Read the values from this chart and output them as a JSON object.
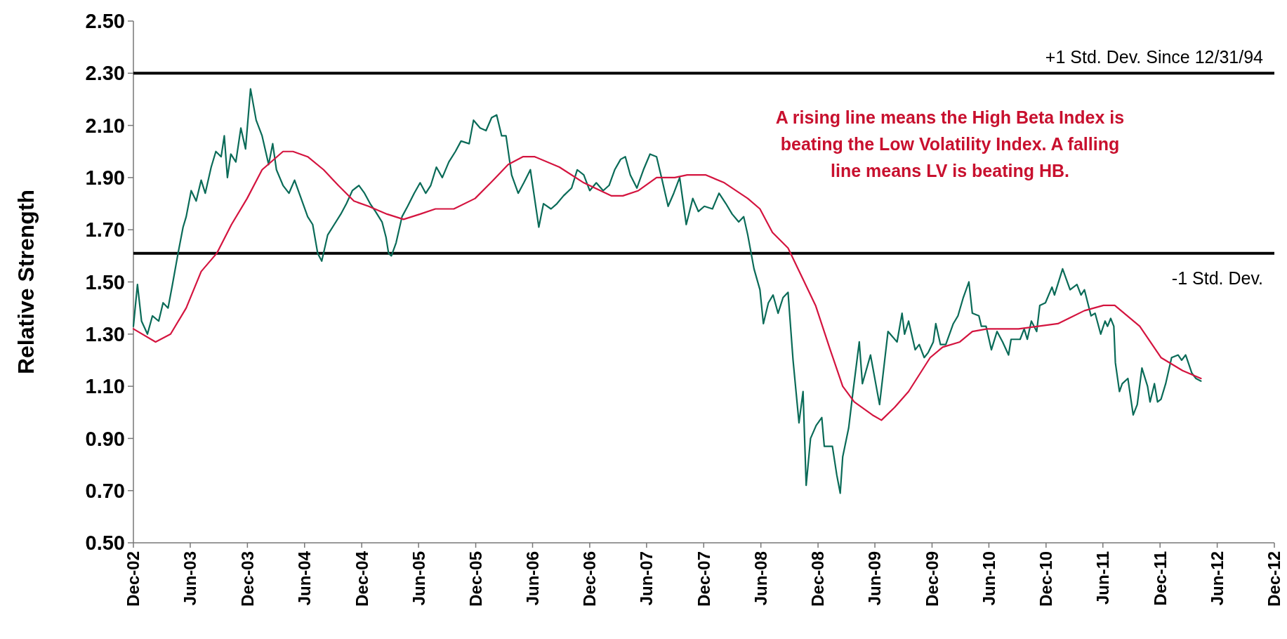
{
  "chart_data": {
    "type": "line",
    "ylabel": "Relative Strength",
    "xlim": [
      "2002-12-01",
      "2012-12-01"
    ],
    "xticks": [
      {
        "value": "2002-12-01",
        "label": "Dec-02"
      },
      {
        "value": "2003-06-01",
        "label": "Jun-03"
      },
      {
        "value": "2003-12-01",
        "label": "Dec-03"
      },
      {
        "value": "2004-06-01",
        "label": "Jun-04"
      },
      {
        "value": "2004-12-01",
        "label": "Dec-04"
      },
      {
        "value": "2005-06-01",
        "label": "Jun-05"
      },
      {
        "value": "2005-12-01",
        "label": "Dec-05"
      },
      {
        "value": "2006-06-01",
        "label": "Jun-06"
      },
      {
        "value": "2006-12-01",
        "label": "Dec-06"
      },
      {
        "value": "2007-06-01",
        "label": "Jun-07"
      },
      {
        "value": "2007-12-01",
        "label": "Dec-07"
      },
      {
        "value": "2008-06-01",
        "label": "Jun-08"
      },
      {
        "value": "2008-12-01",
        "label": "Dec-08"
      },
      {
        "value": "2009-06-01",
        "label": "Jun-09"
      },
      {
        "value": "2009-12-01",
        "label": "Dec-09"
      },
      {
        "value": "2010-06-01",
        "label": "Jun-10"
      },
      {
        "value": "2010-12-01",
        "label": "Dec-10"
      },
      {
        "value": "2011-06-01",
        "label": "Jun-11"
      },
      {
        "value": "2011-12-01",
        "label": "Dec-11"
      },
      {
        "value": "2012-06-01",
        "label": "Jun-12"
      },
      {
        "value": "2012-12-01",
        "label": "Dec-12"
      }
    ],
    "ylim": [
      0.5,
      2.5
    ],
    "yticks": [
      {
        "value": 0.5,
        "label": "0.50"
      },
      {
        "value": 0.7,
        "label": "0.70"
      },
      {
        "value": 0.9,
        "label": "0.90"
      },
      {
        "value": 1.1,
        "label": "1.10"
      },
      {
        "value": 1.3,
        "label": "1.30"
      },
      {
        "value": 1.5,
        "label": "1.50"
      },
      {
        "value": 1.7,
        "label": "1.70"
      },
      {
        "value": 1.9,
        "label": "1.90"
      },
      {
        "value": 2.1,
        "label": "2.10"
      },
      {
        "value": 2.3,
        "label": "2.30"
      },
      {
        "value": 2.5,
        "label": "2.50"
      }
    ],
    "grid": false,
    "marker": "none",
    "line_style": "solid",
    "ref_lines": [
      {
        "axis": "y",
        "value": 2.3,
        "label": "+1 Std. Dev. Since 12/31/94",
        "color": "#000000"
      },
      {
        "axis": "y",
        "value": 1.61,
        "label": "-1 Std. Dev.",
        "color": "#000000"
      }
    ],
    "annotations": [
      "A rising line means the High Beta Index is beating the Low Volatility Index. A falling line means LV is beating HB."
    ],
    "series": [
      {
        "color": "#0a6b58",
        "x": [
          "2002-12-01",
          "2002-12-14",
          "2002-12-27",
          "2003-01-15",
          "2003-01-31",
          "2003-02-20",
          "2003-03-06",
          "2003-03-22",
          "2003-04-05",
          "2003-04-23",
          "2003-05-09",
          "2003-05-19",
          "2003-06-04",
          "2003-06-20",
          "2003-07-06",
          "2003-07-19",
          "2003-08-07",
          "2003-08-22",
          "2003-09-08",
          "2003-09-18",
          "2003-09-28",
          "2003-10-09",
          "2003-10-25",
          "2003-11-10",
          "2003-11-25",
          "2003-12-11",
          "2003-12-29",
          "2004-01-17",
          "2004-02-07",
          "2004-02-20",
          "2004-03-03",
          "2004-03-24",
          "2004-04-12",
          "2004-04-30",
          "2004-05-21",
          "2004-06-11",
          "2004-06-27",
          "2004-07-13",
          "2004-07-26",
          "2004-08-14",
          "2004-09-04",
          "2004-09-25",
          "2004-10-13",
          "2004-11-01",
          "2004-11-22",
          "2004-12-10",
          "2004-12-28",
          "2005-01-14",
          "2005-02-04",
          "2005-02-17",
          "2005-02-25",
          "2005-03-06",
          "2005-03-21",
          "2005-04-09",
          "2005-04-27",
          "2005-05-18",
          "2005-06-06",
          "2005-06-24",
          "2005-07-10",
          "2005-07-28",
          "2005-08-16",
          "2005-09-06",
          "2005-09-27",
          "2005-10-15",
          "2005-11-10",
          "2005-11-24",
          "2005-12-15",
          "2006-01-03",
          "2006-01-21",
          "2006-02-06",
          "2006-02-22",
          "2006-03-08",
          "2006-03-26",
          "2006-04-16",
          "2006-05-04",
          "2006-05-25",
          "2006-06-21",
          "2006-07-06",
          "2006-07-30",
          "2006-08-18",
          "2006-09-08",
          "2006-10-04",
          "2006-10-22",
          "2006-11-12",
          "2006-12-01",
          "2006-12-22",
          "2007-01-13",
          "2007-02-01",
          "2007-02-19",
          "2007-03-10",
          "2007-03-25",
          "2007-04-10",
          "2007-05-01",
          "2007-05-22",
          "2007-06-12",
          "2007-07-03",
          "2007-07-19",
          "2007-08-09",
          "2007-08-27",
          "2007-09-15",
          "2007-10-06",
          "2007-10-27",
          "2007-11-14",
          "2007-12-03",
          "2007-12-29",
          "2008-01-19",
          "2008-02-10",
          "2008-03-01",
          "2008-03-22",
          "2008-04-07",
          "2008-04-20",
          "2008-05-10",
          "2008-05-29",
          "2008-06-09",
          "2008-06-25",
          "2008-07-10",
          "2008-07-26",
          "2008-08-11",
          "2008-08-27",
          "2008-09-12",
          "2008-10-01",
          "2008-10-14",
          "2008-10-24",
          "2008-11-07",
          "2008-11-25",
          "2008-12-13",
          "2008-12-21",
          "2009-01-16",
          "2009-01-30",
          "2009-02-10",
          "2009-02-18",
          "2009-03-09",
          "2009-03-22",
          "2009-04-12",
          "2009-04-22",
          "2009-05-18",
          "2009-06-16",
          "2009-07-13",
          "2009-08-11",
          "2009-08-27",
          "2009-09-04",
          "2009-09-17",
          "2009-10-08",
          "2009-10-21",
          "2009-11-06",
          "2009-11-19",
          "2009-12-05",
          "2009-12-13",
          "2009-12-28",
          "2010-01-14",
          "2010-02-07",
          "2010-02-22",
          "2010-03-11",
          "2010-03-29",
          "2010-04-09",
          "2010-04-30",
          "2010-05-08",
          "2010-05-23",
          "2010-06-09",
          "2010-06-27",
          "2010-07-15",
          "2010-08-03",
          "2010-08-11",
          "2010-09-09",
          "2010-09-22",
          "2010-10-02",
          "2010-10-15",
          "2010-11-01",
          "2010-11-11",
          "2010-11-29",
          "2010-12-20",
          "2010-12-28",
          "2011-01-23",
          "2011-02-16",
          "2011-03-10",
          "2011-03-23",
          "2011-04-03",
          "2011-04-24",
          "2011-05-07",
          "2011-05-25",
          "2011-06-08",
          "2011-06-16",
          "2011-06-26",
          "2011-07-06",
          "2011-07-11",
          "2011-07-24",
          "2011-08-02",
          "2011-08-20",
          "2011-09-06",
          "2011-09-19",
          "2011-10-04",
          "2011-10-22",
          "2011-10-30",
          "2011-11-13",
          "2011-11-23",
          "2011-12-04",
          "2011-12-19",
          "2012-01-07",
          "2012-01-28",
          "2012-02-08",
          "2012-02-21",
          "2012-03-12",
          "2012-03-25",
          "2012-04-10"
        ],
        "values": [
          1.33,
          1.49,
          1.35,
          1.3,
          1.37,
          1.35,
          1.42,
          1.4,
          1.49,
          1.61,
          1.71,
          1.75,
          1.85,
          1.81,
          1.89,
          1.84,
          1.94,
          2.0,
          1.98,
          2.06,
          1.9,
          1.99,
          1.96,
          2.09,
          2.01,
          2.24,
          2.12,
          2.06,
          1.95,
          2.03,
          1.93,
          1.87,
          1.84,
          1.89,
          1.82,
          1.75,
          1.72,
          1.61,
          1.58,
          1.68,
          1.72,
          1.76,
          1.8,
          1.85,
          1.87,
          1.84,
          1.8,
          1.77,
          1.73,
          1.67,
          1.61,
          1.6,
          1.65,
          1.75,
          1.79,
          1.84,
          1.88,
          1.84,
          1.87,
          1.94,
          1.9,
          1.96,
          2.0,
          2.04,
          2.03,
          2.12,
          2.09,
          2.08,
          2.13,
          2.14,
          2.06,
          2.06,
          1.91,
          1.84,
          1.88,
          1.93,
          1.71,
          1.8,
          1.78,
          1.8,
          1.83,
          1.86,
          1.93,
          1.91,
          1.85,
          1.88,
          1.85,
          1.87,
          1.93,
          1.97,
          1.98,
          1.91,
          1.86,
          1.93,
          1.99,
          1.98,
          1.9,
          1.79,
          1.84,
          1.9,
          1.72,
          1.82,
          1.77,
          1.79,
          1.78,
          1.84,
          1.8,
          1.76,
          1.73,
          1.75,
          1.68,
          1.55,
          1.47,
          1.34,
          1.42,
          1.45,
          1.38,
          1.44,
          1.46,
          1.2,
          0.96,
          1.08,
          0.72,
          0.9,
          0.95,
          0.98,
          0.87,
          0.87,
          0.76,
          0.69,
          0.83,
          0.94,
          1.07,
          1.27,
          1.11,
          1.22,
          1.03,
          1.31,
          1.27,
          1.38,
          1.3,
          1.35,
          1.24,
          1.26,
          1.21,
          1.23,
          1.27,
          1.34,
          1.26,
          1.26,
          1.34,
          1.37,
          1.44,
          1.5,
          1.38,
          1.37,
          1.33,
          1.33,
          1.24,
          1.31,
          1.27,
          1.22,
          1.28,
          1.28,
          1.32,
          1.28,
          1.35,
          1.31,
          1.41,
          1.42,
          1.48,
          1.45,
          1.55,
          1.47,
          1.49,
          1.45,
          1.47,
          1.37,
          1.38,
          1.3,
          1.35,
          1.33,
          1.36,
          1.33,
          1.19,
          1.08,
          1.11,
          1.13,
          0.99,
          1.03,
          1.17,
          1.1,
          1.04,
          1.11,
          1.04,
          1.05,
          1.11,
          1.21,
          1.22,
          1.2,
          1.22,
          1.15,
          1.13,
          1.12
        ]
      },
      {
        "color": "#d4143f",
        "x": [
          "2002-12-01",
          "2003-02-10",
          "2003-03-30",
          "2003-05-19",
          "2003-07-06",
          "2003-08-25",
          "2003-10-11",
          "2003-11-30",
          "2004-01-17",
          "2004-03-24",
          "2004-04-25",
          "2004-06-11",
          "2004-08-01",
          "2004-09-17",
          "2004-11-06",
          "2004-12-23",
          "2005-02-20",
          "2005-04-14",
          "2005-06-06",
          "2005-07-25",
          "2005-09-22",
          "2005-11-29",
          "2006-01-18",
          "2006-03-15",
          "2006-05-01",
          "2006-06-08",
          "2006-08-26",
          "2006-11-12",
          "2007-02-09",
          "2007-03-17",
          "2007-05-06",
          "2007-07-03",
          "2007-08-30",
          "2007-10-09",
          "2007-12-08",
          "2008-02-05",
          "2008-04-20",
          "2008-05-29",
          "2008-07-08",
          "2008-08-27",
          "2008-10-14",
          "2008-11-23",
          "2009-01-09",
          "2009-02-18",
          "2009-03-27",
          "2009-05-24",
          "2009-06-22",
          "2009-08-04",
          "2009-09-17",
          "2009-11-25",
          "2010-01-04",
          "2010-02-28",
          "2010-04-09",
          "2010-05-26",
          "2010-09-04",
          "2011-01-08",
          "2011-04-03",
          "2011-06-03",
          "2011-07-09",
          "2011-09-27",
          "2011-12-04",
          "2012-02-11",
          "2012-04-10"
        ],
        "values": [
          1.32,
          1.27,
          1.3,
          1.4,
          1.54,
          1.61,
          1.72,
          1.82,
          1.93,
          2.0,
          2.0,
          1.98,
          1.93,
          1.87,
          1.81,
          1.79,
          1.76,
          1.74,
          1.76,
          1.78,
          1.78,
          1.82,
          1.88,
          1.95,
          1.98,
          1.98,
          1.94,
          1.88,
          1.83,
          1.83,
          1.85,
          1.9,
          1.9,
          1.91,
          1.91,
          1.88,
          1.82,
          1.78,
          1.69,
          1.63,
          1.51,
          1.41,
          1.24,
          1.1,
          1.04,
          0.99,
          0.97,
          1.02,
          1.08,
          1.21,
          1.25,
          1.27,
          1.31,
          1.32,
          1.32,
          1.34,
          1.39,
          1.41,
          1.41,
          1.33,
          1.21,
          1.16,
          1.13
        ]
      }
    ]
  }
}
